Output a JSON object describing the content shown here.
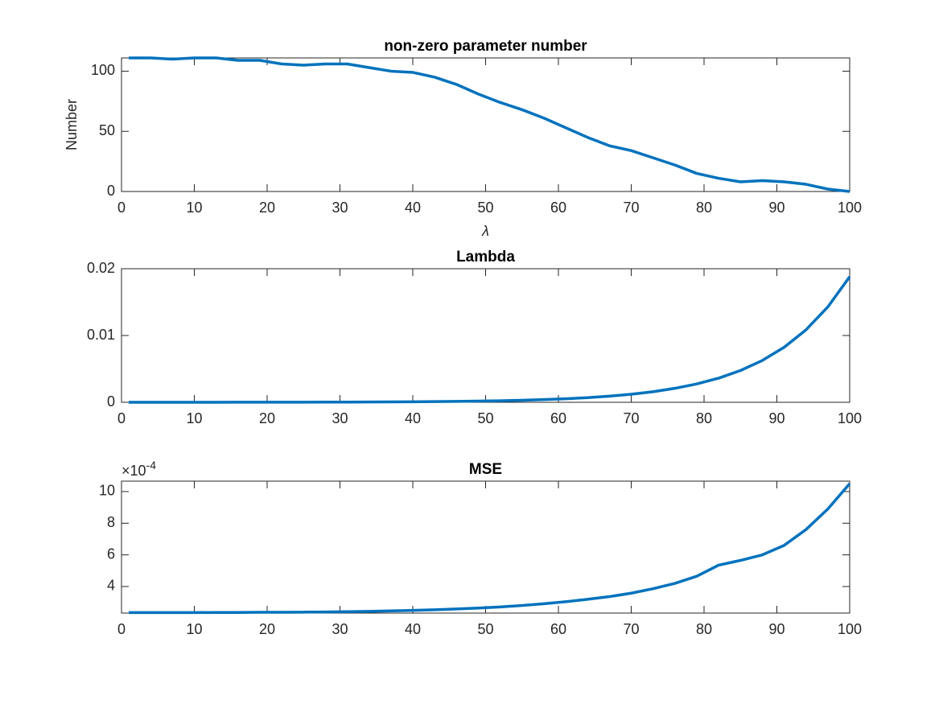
{
  "chart_data": [
    {
      "type": "line",
      "title": "non-zero parameter number",
      "y_label": "Number",
      "x_label": "λ",
      "x": [
        1,
        4,
        7,
        10,
        13,
        16,
        19,
        22,
        25,
        28,
        31,
        34,
        37,
        40,
        43,
        46,
        49,
        52,
        55,
        58,
        61,
        64,
        67,
        70,
        73,
        76,
        79,
        82,
        85,
        88,
        91,
        94,
        97,
        100
      ],
      "series": [
        {
          "name": "non-zero parameter number",
          "color": "#0072BD",
          "values": [
            111,
            111,
            110,
            111,
            111,
            109,
            109,
            106,
            105,
            106,
            106,
            103,
            100,
            99,
            95,
            89,
            81,
            74,
            68,
            61,
            53,
            45,
            38,
            34,
            28,
            22,
            15,
            11,
            8,
            9,
            8,
            6,
            2,
            0
          ]
        }
      ],
      "xlim": [
        0,
        100
      ],
      "xticks": [
        0,
        10,
        20,
        30,
        40,
        50,
        60,
        70,
        80,
        90,
        100
      ],
      "ylim": [
        0,
        111
      ],
      "yticks": [
        0,
        50,
        100
      ]
    },
    {
      "type": "line",
      "title": "Lambda",
      "x": [
        1,
        4,
        7,
        10,
        13,
        16,
        19,
        22,
        25,
        28,
        31,
        34,
        37,
        40,
        43,
        46,
        49,
        52,
        55,
        58,
        61,
        64,
        67,
        70,
        73,
        76,
        79,
        82,
        85,
        88,
        91,
        94,
        97,
        100
      ],
      "series": [
        {
          "name": "Lambda",
          "color": "#0072BD",
          "values": [
            2.2e-06,
            2.9e-06,
            3.8e-06,
            4.9e-06,
            6.5e-06,
            8.6e-06,
            1.13e-05,
            1.48e-05,
            1.95e-05,
            2.57e-05,
            3.38e-05,
            4.45e-05,
            5.86e-05,
            7.71e-05,
            0.000102,
            0.000134,
            0.000176,
            0.000232,
            0.000305,
            0.000401,
            0.000528,
            0.000695,
            0.000915,
            0.0012,
            0.00158,
            0.00209,
            0.00275,
            0.00361,
            0.00476,
            0.00626,
            0.00824,
            0.01085,
            0.01428,
            0.0188
          ]
        }
      ],
      "xlim": [
        0,
        100
      ],
      "xticks": [
        0,
        10,
        20,
        30,
        40,
        50,
        60,
        70,
        80,
        90,
        100
      ],
      "ylim": [
        0,
        0.02
      ],
      "yticks": [
        0,
        0.01,
        0.02
      ]
    },
    {
      "type": "line",
      "title": "MSE",
      "y_multiplier": {
        "base": "×10",
        "exponent": "-4"
      },
      "x": [
        1,
        4,
        7,
        10,
        13,
        16,
        19,
        22,
        25,
        28,
        31,
        34,
        37,
        40,
        43,
        46,
        49,
        52,
        55,
        58,
        61,
        64,
        67,
        70,
        73,
        76,
        79,
        82,
        85,
        88,
        91,
        94,
        97,
        100
      ],
      "series": [
        {
          "name": "MSE",
          "color": "#0072BD",
          "values": [
            2.35,
            2.35,
            2.35,
            2.35,
            2.36,
            2.36,
            2.37,
            2.37,
            2.38,
            2.39,
            2.41,
            2.43,
            2.46,
            2.49,
            2.53,
            2.58,
            2.64,
            2.71,
            2.8,
            2.91,
            3.04,
            3.19,
            3.36,
            3.58,
            3.86,
            4.2,
            4.65,
            5.35,
            5.65,
            6.0,
            6.6,
            7.6,
            8.9,
            10.5
          ]
        }
      ],
      "xlim": [
        0,
        100
      ],
      "xticks": [
        0,
        10,
        20,
        30,
        40,
        50,
        60,
        70,
        80,
        90,
        100
      ],
      "ylim": [
        2.32,
        10.66
      ],
      "yticks": [
        4,
        6,
        8,
        10
      ]
    }
  ]
}
